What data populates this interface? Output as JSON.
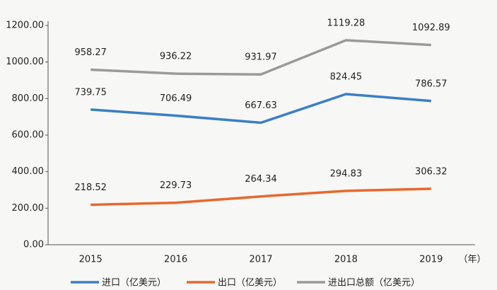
{
  "chart_data": {
    "type": "line",
    "categories": [
      "2015",
      "2016",
      "2017",
      "2018",
      "2019"
    ],
    "x_label": "（年）",
    "series": [
      {
        "name": "进口（亿美元）",
        "color": "#3a7fc4",
        "values": [
          739.75,
          706.49,
          667.63,
          824.45,
          786.57
        ]
      },
      {
        "name": "出口（亿美元）",
        "color": "#e8682c",
        "values": [
          218.52,
          229.73,
          264.34,
          294.83,
          306.32
        ]
      },
      {
        "name": "进出口总额（亿美元）",
        "color": "#9a9a9a",
        "values": [
          958.27,
          936.22,
          931.97,
          1119.28,
          1092.89
        ]
      }
    ],
    "ylim": [
      0,
      1200
    ],
    "yticks": [
      {
        "value": 0,
        "label": "0.00"
      },
      {
        "value": 200,
        "label": "200.00"
      },
      {
        "value": 400,
        "label": "400.00"
      },
      {
        "value": 600,
        "label": "600.00"
      },
      {
        "value": 800,
        "label": "800.00"
      },
      {
        "value": 1000,
        "label": "1000.00"
      },
      {
        "value": 1200,
        "label": "1200.00"
      }
    ],
    "grid": false,
    "legend": "bottom"
  }
}
